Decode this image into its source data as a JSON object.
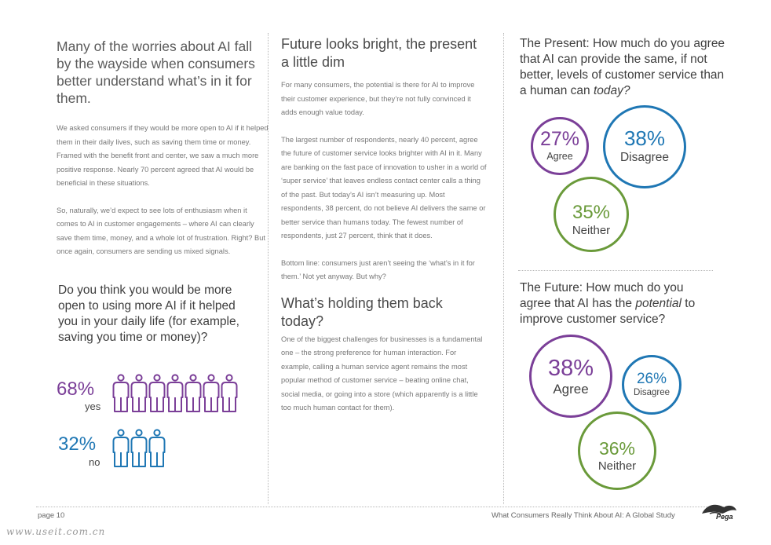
{
  "left": {
    "lead": "Many of the worries about AI fall by the wayside when consumers better understand what’s in it for them.",
    "paragraphs": [
      "We asked consumers if they would be more open to AI if it helped them in their daily lives, such as saving them time or money. Framed with the benefit front and center, we saw a much more positive response. Nearly 70 percent agreed that AI would be beneficial in these situations.",
      "So, naturally, we’d expect to see lots of enthusiasm when it comes to AI in customer engagements – where AI can clearly save them time, money, and a whole lot of frustration. Right? But once again, consumers are sending us mixed signals."
    ],
    "question": "Do you think you would be more open to using more AI if it helped you in your daily life (for example, saving you time or money)?",
    "yes": {
      "pct": "68%",
      "label": "yes",
      "icons": 7,
      "color": "#7b3f98"
    },
    "no": {
      "pct": "32%",
      "label": "no",
      "icons": 3,
      "color": "#1f77b4"
    }
  },
  "middle": {
    "heading1": "Future looks bright, the present a little dim",
    "paragraphs1": [
      "For many consumers, the potential is there for AI to improve their customer experience, but they’re not fully convinced it adds enough value today.",
      "The largest number of respondents, nearly 40 percent, agree the future of customer service looks brighter with AI in it. Many are banking on the fast pace of innovation to usher in a world of ‘super service’ that leaves endless contact center calls a thing of the past. But today’s AI isn’t measuring up. Most respondents, 38 percent, do not believe AI delivers the same or better service than humans today. The fewest number of respondents, just 27 percent, think that it does.",
      "Bottom line: consumers just aren’t seeing the ‘what’s in it for them.’ Not yet anyway. But why?"
    ],
    "heading2": "What’s holding them back today?",
    "paragraph2": "One of the biggest challenges for businesses is a fundamental one – the strong preference for human interaction. For example, calling a human service agent remains the most popular method of customer service – beating online chat, social media, or going into a store (which apparently is a little too much human contact for them)."
  },
  "right": {
    "present": {
      "q1": "The Present: How much do you agree that AI can provide the same, if not better, levels of customer service than a human can ",
      "q_em": "today?",
      "agree": {
        "pct": "27%",
        "label": "Agree",
        "value": 27,
        "color": "#7b3f98"
      },
      "disagree": {
        "pct": "38%",
        "label": "Disagree",
        "value": 38,
        "color": "#1f77b4"
      },
      "neither": {
        "pct": "35%",
        "label": "Neither",
        "value": 35,
        "color": "#6a9a3a"
      }
    },
    "future": {
      "q1": "The Future: How much do you agree that AI has the ",
      "q_em": "potential",
      "q2": " to improve customer service?",
      "agree": {
        "pct": "38%",
        "label": "Agree",
        "value": 38,
        "color": "#7b3f98"
      },
      "disagree": {
        "pct": "26%",
        "label": "Disagree",
        "value": 26,
        "color": "#1f77b4"
      },
      "neither": {
        "pct": "36%",
        "label": "Neither",
        "value": 36,
        "color": "#6a9a3a"
      }
    }
  },
  "footer": {
    "page": "page 10",
    "title": "What Consumers Really Think About AI: A Global Study",
    "logo": "Pega",
    "watermark": "www.useit.com.cn"
  }
}
